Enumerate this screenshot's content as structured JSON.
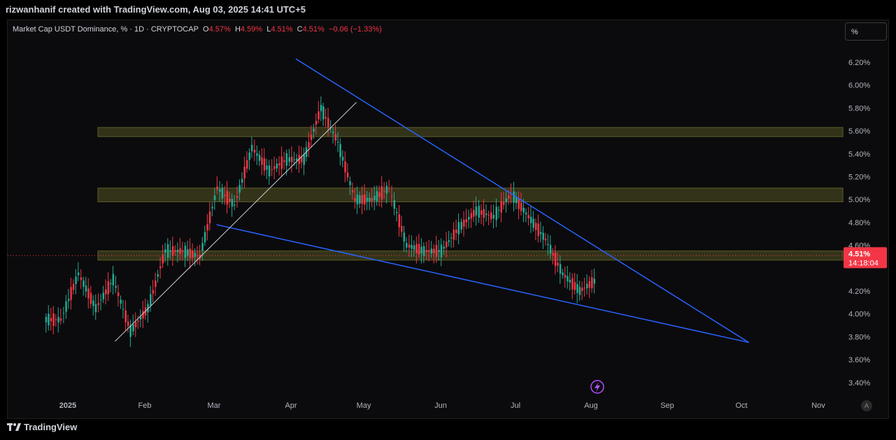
{
  "header": {
    "attribution": "rizwanhanif created with TradingView.com, Aug 03, 2025 14:41 UTC+5"
  },
  "legend": {
    "symbol": "Market Cap USDT Dominance, % · 1D · CRYPTOCAP",
    "open_label": "O",
    "open": "4.57%",
    "high_label": "H",
    "high": "4.59%",
    "low_label": "L",
    "low": "4.51%",
    "close_label": "C",
    "close": "4.51%",
    "change": "−0.06 (−1.33%)"
  },
  "toolbar": {
    "scale_button": "%"
  },
  "price_tag": {
    "value": "4.51%",
    "countdown": "14:18:04"
  },
  "footer": {
    "brand": "TradingView"
  },
  "auto_button": "A",
  "colors": {
    "up": "#22ab94",
    "down": "#f23645",
    "zone_fill": "#3a3a1c",
    "zone_border": "#6b6b2e",
    "wedge_line": "#2962ff",
    "trendline": "#d1d4dc",
    "background": "#0b0b0d"
  },
  "chart_data": {
    "type": "candlestick",
    "title": "Market Cap USDT Dominance, % · 1D · CRYPTOCAP",
    "ylim": [
      3.3,
      6.4
    ],
    "y_ticks": [
      "6.20%",
      "6.00%",
      "5.80%",
      "5.60%",
      "5.40%",
      "5.20%",
      "5.00%",
      "4.80%",
      "4.60%",
      "4.20%",
      "4.00%",
      "3.80%",
      "3.60%",
      "3.40%"
    ],
    "x_ticks": [
      "2025",
      "Feb",
      "Mar",
      "Apr",
      "May",
      "Jun",
      "Jul",
      "Aug",
      "Sep",
      "Oct",
      "Nov"
    ],
    "grid": false,
    "series": [
      {
        "x": [
          "Dec 23",
          "Dec 30",
          "Jan 6",
          "Jan 13",
          "Jan 20",
          "Jan 27",
          "Feb 3",
          "Feb 10",
          "Feb 17",
          "Feb 24",
          "Mar 3",
          "Mar 10",
          "Mar 17",
          "Mar 24",
          "Mar 31",
          "Apr 7",
          "Apr 14",
          "Apr 21",
          "Apr 28",
          "May 5",
          "May 12",
          "May 19",
          "May 26",
          "Jun 2",
          "Jun 9",
          "Jun 16",
          "Jun 23",
          "Jun 30",
          "Jul 7",
          "Jul 14",
          "Jul 21",
          "Jul 28",
          "Aug 3"
        ],
        "close": [
          3.95,
          4.35,
          4.05,
          4.3,
          3.85,
          4.05,
          4.55,
          4.55,
          4.5,
          5.1,
          4.95,
          5.45,
          5.25,
          5.35,
          5.35,
          5.8,
          5.5,
          5.0,
          5.0,
          5.1,
          4.6,
          4.55,
          4.55,
          4.75,
          4.9,
          4.85,
          5.05,
          4.85,
          4.65,
          4.35,
          4.2,
          4.3,
          4.51
        ]
      }
    ],
    "current_price": 4.51,
    "zones": [
      {
        "low": 5.55,
        "high": 5.63
      },
      {
        "low": 4.98,
        "high": 5.1
      },
      {
        "low": 4.47,
        "high": 4.55
      }
    ],
    "trendlines": [
      {
        "name": "upper-wedge",
        "from": [
          "Apr 3",
          6.23
        ],
        "to": [
          "Oct 4",
          3.75
        ]
      },
      {
        "name": "lower-wedge",
        "from": [
          "Mar 2",
          4.78
        ],
        "to": [
          "Oct 4",
          3.75
        ]
      },
      {
        "name": "support-trendline",
        "from": [
          "Jan 20",
          3.76
        ],
        "to": [
          "Apr 28",
          5.85
        ]
      }
    ]
  }
}
